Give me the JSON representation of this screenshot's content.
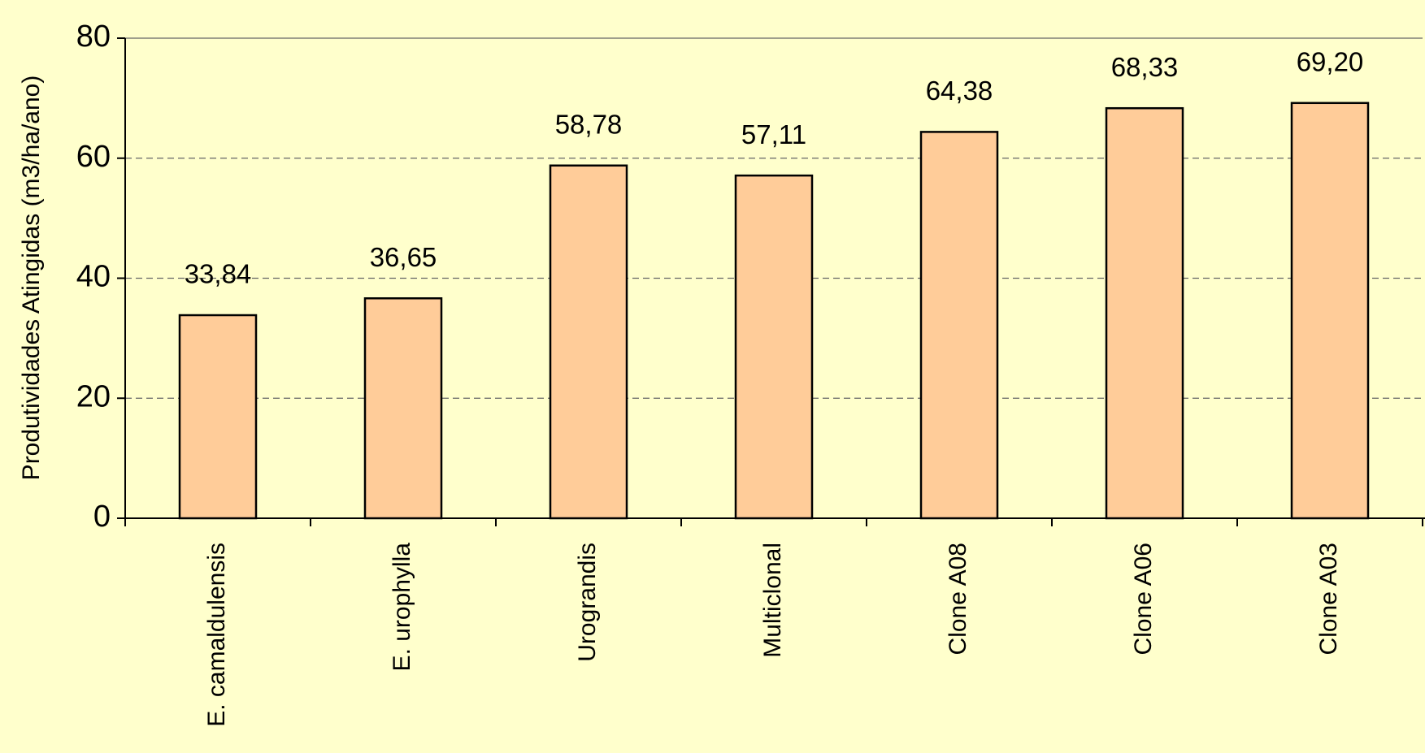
{
  "chart_data": {
    "type": "bar",
    "y_label": "Produtividades Atingidas (m3/ha/ano)",
    "categories": [
      "E. camaldulensis",
      "E. urophylla",
      "Urograndis",
      "Multiclonal",
      "Clone A08",
      "Clone A06",
      "Clone A03"
    ],
    "values": [
      33.84,
      36.65,
      58.78,
      57.11,
      64.38,
      68.33,
      69.2
    ],
    "value_labels": [
      "33,84",
      "36,65",
      "58,78",
      "57,11",
      "64,38",
      "68,33",
      "69,20"
    ],
    "color": "#ffcc99",
    "ylim": [
      0,
      80
    ],
    "yticks": [
      0,
      20,
      40,
      60,
      80
    ],
    "grid": true
  }
}
